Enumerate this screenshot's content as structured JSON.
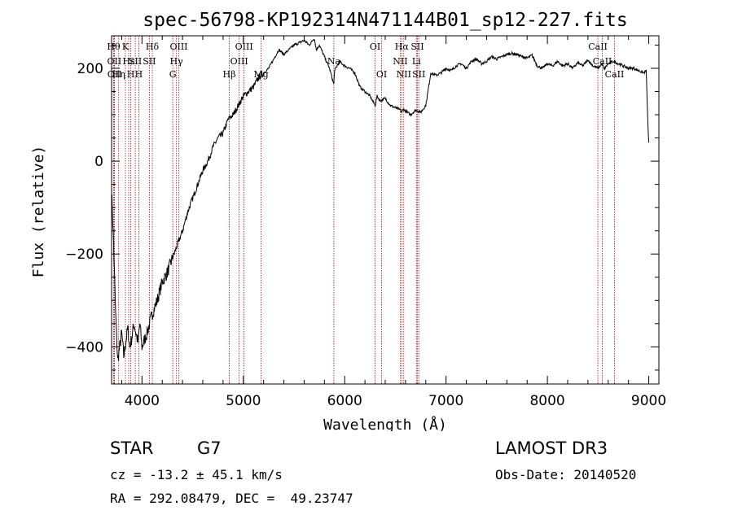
{
  "chart_data": {
    "type": "line",
    "title": "spec-56798-KP192314N471144B01_sp12-227.fits",
    "xlabel": "Wavelength (Å)",
    "ylabel": "Flux (relative)",
    "xlim": [
      3700,
      9100
    ],
    "ylim": [
      -480,
      270
    ],
    "xticks": [
      4000,
      5000,
      6000,
      7000,
      8000,
      9000
    ],
    "yticks": [
      -400,
      -200,
      0,
      200
    ],
    "series": [
      {
        "x": [
          3700,
          3720,
          3740,
          3760,
          3780,
          3800,
          3820,
          3840,
          3860,
          3880,
          3900,
          3920,
          3940,
          3960,
          3980,
          4000,
          4050,
          4100,
          4150,
          4200,
          4250,
          4300,
          4350,
          4400,
          4450,
          4500,
          4550,
          4600,
          4650,
          4700,
          4750,
          4800,
          4850,
          4900,
          4950,
          5000,
          5050,
          5100,
          5150,
          5200,
          5250,
          5300,
          5350,
          5400,
          5450,
          5500,
          5550,
          5600,
          5650,
          5700,
          5720,
          5750,
          5800,
          5850,
          5893,
          5900,
          5950,
          6000,
          6050,
          6100,
          6150,
          6200,
          6250,
          6300,
          6320,
          6350,
          6400,
          6450,
          6500,
          6550,
          6563,
          6580,
          6600,
          6650,
          6700,
          6750,
          6800,
          6850,
          6900,
          6950,
          7000,
          7050,
          7100,
          7150,
          7200,
          7250,
          7300,
          7350,
          7400,
          7450,
          7500,
          7550,
          7600,
          7650,
          7700,
          7750,
          7800,
          7850,
          7900,
          7950,
          8000,
          8050,
          8100,
          8150,
          8200,
          8250,
          8300,
          8350,
          8400,
          8450,
          8500,
          8540,
          8560,
          8600,
          8650,
          8700,
          8750,
          8800,
          8850,
          8900,
          8950,
          8975,
          8990,
          9000
        ],
        "y": [
          -60,
          -180,
          -330,
          -430,
          -400,
          -370,
          -420,
          -390,
          -360,
          -400,
          -380,
          -350,
          -370,
          -390,
          -350,
          -400,
          -370,
          -330,
          -300,
          -260,
          -240,
          -210,
          -180,
          -150,
          -110,
          -80,
          -50,
          -20,
          0,
          30,
          50,
          60,
          90,
          100,
          120,
          140,
          150,
          160,
          180,
          190,
          200,
          220,
          240,
          230,
          240,
          250,
          255,
          260,
          250,
          265,
          240,
          250,
          225,
          200,
          165,
          195,
          215,
          205,
          200,
          190,
          160,
          150,
          140,
          120,
          140,
          130,
          135,
          120,
          115,
          110,
          105,
          112,
          108,
          100,
          110,
          105,
          120,
          190,
          185,
          190,
          200,
          195,
          205,
          210,
          200,
          215,
          220,
          210,
          215,
          225,
          220,
          225,
          230,
          232,
          230,
          225,
          222,
          228,
          205,
          200,
          210,
          205,
          215,
          205,
          210,
          200,
          212,
          205,
          218,
          205,
          200,
          210,
          198,
          210,
          215,
          210,
          205,
          200,
          200,
          195,
          190,
          195,
          90,
          40
        ]
      }
    ],
    "lines": [
      {
        "x": 3720,
        "name": "Hθ",
        "row": 0
      },
      {
        "x": 3727,
        "name": "OII",
        "row": 1
      },
      {
        "x": 3729,
        "name": "OII",
        "row": 2
      },
      {
        "x": 3770,
        "name": "Hη",
        "row": 2
      },
      {
        "x": 3836,
        "name": "K",
        "row": 0
      },
      {
        "x": 3869,
        "name": "Hε",
        "row": 1
      },
      {
        "x": 3889,
        "name": "H",
        "row": 2
      },
      {
        "x": 3934,
        "name": "SII",
        "row": 1
      },
      {
        "x": 3969,
        "name": "H",
        "row": 2
      },
      {
        "x": 4102,
        "name": "Hδ",
        "row": 0
      },
      {
        "x": 4073,
        "name": "SII",
        "row": 1
      },
      {
        "x": 4304,
        "name": "G",
        "row": 2
      },
      {
        "x": 4340,
        "name": "Hγ",
        "row": 1
      },
      {
        "x": 4363,
        "name": "OIII",
        "row": 0
      },
      {
        "x": 4861,
        "name": "Hβ",
        "row": 2
      },
      {
        "x": 4959,
        "name": "OIII",
        "row": 1
      },
      {
        "x": 5007,
        "name": "OIII",
        "row": 0
      },
      {
        "x": 5175,
        "name": "Mg",
        "row": 2
      },
      {
        "x": 5893,
        "name": "Na",
        "row": 1
      },
      {
        "x": 6300,
        "name": "OI",
        "row": 0
      },
      {
        "x": 6364,
        "name": "OI",
        "row": 2
      },
      {
        "x": 6548,
        "name": "NII",
        "row": 1
      },
      {
        "x": 6563,
        "name": "Hα",
        "row": 0
      },
      {
        "x": 6583,
        "name": "NII",
        "row": 2
      },
      {
        "x": 6708,
        "name": "Li",
        "row": 1
      },
      {
        "x": 6717,
        "name": "SII",
        "row": 0
      },
      {
        "x": 6731,
        "name": "SII",
        "row": 2
      },
      {
        "x": 8498,
        "name": "CaII",
        "row": 0
      },
      {
        "x": 8542,
        "name": "CaII",
        "row": 1
      },
      {
        "x": 8662,
        "name": "CaII",
        "row": 2
      }
    ]
  },
  "info": {
    "class": "STAR",
    "subclass": "G7",
    "survey": "LAMOST DR3",
    "cz": "cz = -13.2 ± 45.1 km/s",
    "obs_date": "Obs-Date: 20140520",
    "radec": "RA = 292.08479, DEC =  49.23747"
  },
  "colors": {
    "line_markers": "#a01818",
    "spectrum": "#000000"
  }
}
